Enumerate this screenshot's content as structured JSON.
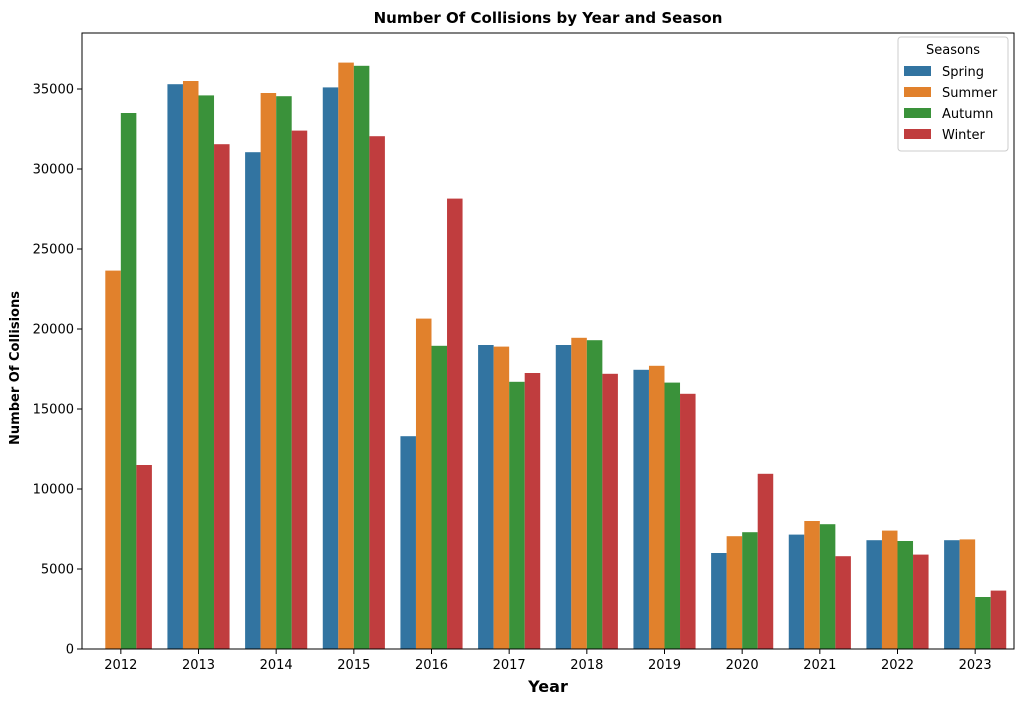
{
  "chart_data": {
    "type": "bar",
    "title": "Number Of Collisions by Year and Season",
    "xlabel": "Year",
    "ylabel": "Number Of Collisions",
    "categories": [
      "2012",
      "2013",
      "2014",
      "2015",
      "2016",
      "2017",
      "2018",
      "2019",
      "2020",
      "2021",
      "2022",
      "2023"
    ],
    "ylim": [
      0,
      38500
    ],
    "yticks": [
      0,
      5000,
      10000,
      15000,
      20000,
      25000,
      30000,
      35000
    ],
    "legend": {
      "title": "Seasons",
      "position": "top-right"
    },
    "grid": false,
    "series": [
      {
        "name": "Spring",
        "color": "#3274a1",
        "values": [
          null,
          35300,
          31050,
          35100,
          13300,
          19000,
          19000,
          17450,
          6000,
          7150,
          6800,
          6800
        ]
      },
      {
        "name": "Summer",
        "color": "#e1812c",
        "values": [
          23650,
          35500,
          34750,
          36650,
          20650,
          18900,
          19450,
          17700,
          7050,
          8000,
          7400,
          6850
        ]
      },
      {
        "name": "Autumn",
        "color": "#3a923a",
        "values": [
          33500,
          34600,
          34550,
          36450,
          18950,
          16700,
          19300,
          16650,
          7300,
          7800,
          6750,
          3250
        ]
      },
      {
        "name": "Winter",
        "color": "#c03d3e",
        "values": [
          11500,
          31550,
          32400,
          32050,
          28150,
          17250,
          17200,
          15950,
          10950,
          5800,
          5900,
          3650
        ]
      }
    ]
  }
}
